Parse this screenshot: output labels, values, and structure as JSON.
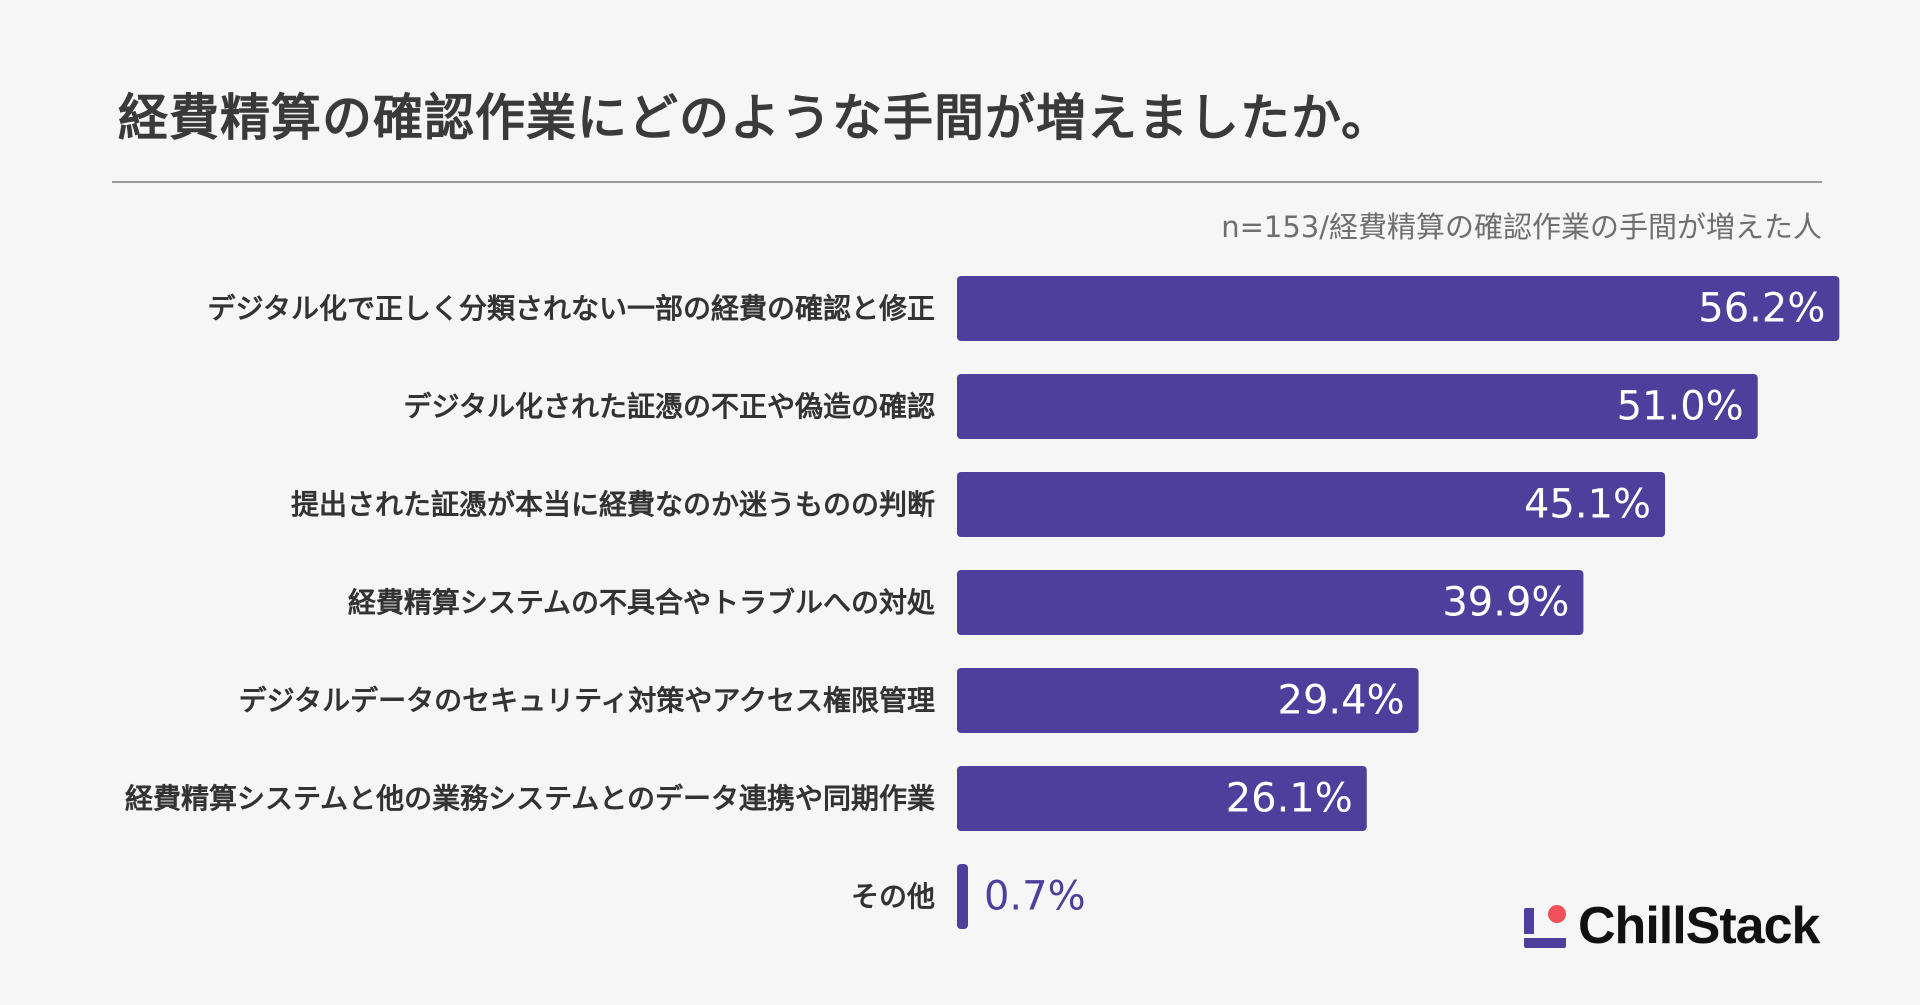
{
  "chart_data": {
    "type": "bar",
    "orientation": "horizontal",
    "title": "経費精算の確認作業にどのような手間が増えましたか。",
    "note": "n=153/経費精算の確認作業の手間が増えた人",
    "categories": [
      "デジタル化で正しく分類されない一部の経費の確認と修正",
      "デジタル化された証憑の不正や偽造の確認",
      "提出された証憑が本当に経費なのか迷うものの判断",
      "経費精算システムの不具合やトラブルへの対処",
      "デジタルデータのセキュリティ対策やアクセス権限管理",
      "経費精算システムと他の業務システムとのデータ連携や同期作業",
      "その他"
    ],
    "values": [
      56.2,
      51.0,
      45.1,
      39.9,
      29.4,
      26.1,
      0.7
    ],
    "value_labels": [
      "56.2%",
      "51.0%",
      "45.1%",
      "39.9%",
      "29.4%",
      "26.1%",
      "0.7%"
    ],
    "unit": "%",
    "bar_color": "#4e3f9c",
    "label_color": "#333333",
    "value_label_inside_color": "#ffffff",
    "value_label_outside_color": "#4e3f9c"
  },
  "brand": {
    "name": "ChillStack",
    "mark_color": "#4e3f9c",
    "dot_color": "#f0505a"
  }
}
